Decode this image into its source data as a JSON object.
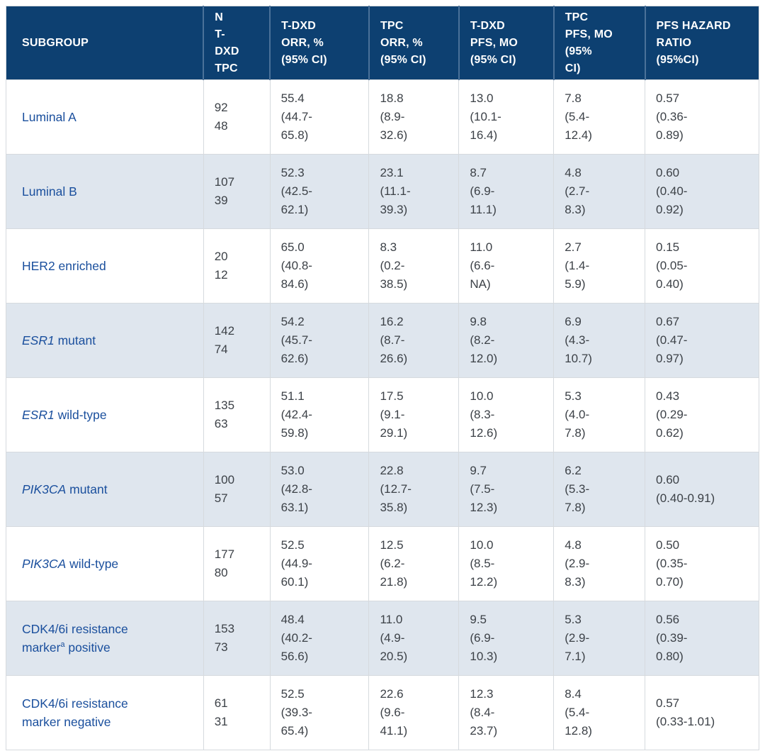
{
  "theme": {
    "header_bg": "#0d4071",
    "header_text": "#ffffff",
    "header_divider": "#4a7199",
    "row_alt_bg": "#dfe6ee",
    "row_bg": "#ffffff",
    "border": "#d6dade",
    "subgroup_text": "#1a4f9d",
    "body_text": "#3c4147"
  },
  "table": {
    "columns": [
      {
        "id": "subgroup",
        "label": "SUBGROUP"
      },
      {
        "id": "n",
        "label": "N\nT-\nDXD\nTPC"
      },
      {
        "id": "tdxd_orr",
        "label": "T-DXD\nORR, %\n(95% CI)"
      },
      {
        "id": "tpc_orr",
        "label": "TPC\nORR, %\n(95% CI)"
      },
      {
        "id": "tdxd_pfs",
        "label": "T-DXD\nPFS, MO\n(95% CI)"
      },
      {
        "id": "tpc_pfs",
        "label": "TPC\nPFS, MO\n(95%\nCI)"
      },
      {
        "id": "pfs_hr",
        "label": "PFS HAZARD\nRATIO\n(95%CI)"
      }
    ],
    "rows": [
      {
        "subgroup": [
          {
            "text": "Luminal A"
          }
        ],
        "values": [
          "92\n48",
          "55.4\n(44.7-\n65.8)",
          "18.8\n(8.9-\n32.6)",
          "13.0\n(10.1-\n16.4)",
          "7.8\n(5.4-\n12.4)",
          "0.57\n(0.36-\n0.89)"
        ]
      },
      {
        "subgroup": [
          {
            "text": "Luminal B"
          }
        ],
        "values": [
          "107\n39",
          "52.3\n(42.5-\n62.1)",
          "23.1\n(11.1-\n39.3)",
          "8.7\n(6.9-\n11.1)",
          "4.8\n(2.7-\n8.3)",
          "0.60\n(0.40-\n0.92)"
        ]
      },
      {
        "subgroup": [
          {
            "text": "HER2 enriched"
          }
        ],
        "values": [
          "20\n12",
          "65.0\n(40.8-\n84.6)",
          "8.3\n(0.2-\n38.5)",
          "11.0\n(6.6-\nNA)",
          "2.7\n(1.4-\n5.9)",
          "0.15\n(0.05-\n0.40)"
        ]
      },
      {
        "subgroup": [
          {
            "text": "ESR1",
            "italic": true
          },
          {
            "text": " mutant"
          }
        ],
        "values": [
          "142\n74",
          "54.2\n(45.7-\n62.6)",
          "16.2\n(8.7-\n26.6)",
          "9.8\n(8.2-\n12.0)",
          "6.9\n(4.3-\n10.7)",
          "0.67\n(0.47-\n0.97)"
        ]
      },
      {
        "subgroup": [
          {
            "text": "ESR1",
            "italic": true
          },
          {
            "text": " wild-type"
          }
        ],
        "values": [
          "135\n63",
          "51.1\n(42.4-\n59.8)",
          "17.5\n(9.1-\n29.1)",
          "10.0\n(8.3-\n12.6)",
          "5.3\n(4.0-\n7.8)",
          "0.43\n(0.29-\n0.62)"
        ]
      },
      {
        "subgroup": [
          {
            "text": "PIK3CA",
            "italic": true
          },
          {
            "text": " mutant"
          }
        ],
        "values": [
          "100\n57",
          "53.0\n(42.8-\n63.1)",
          "22.8\n(12.7-\n35.8)",
          "9.7\n(7.5-\n12.3)",
          "6.2\n(5.3-\n7.8)",
          "0.60\n(0.40-0.91)"
        ]
      },
      {
        "subgroup": [
          {
            "text": "PIK3CA",
            "italic": true
          },
          {
            "text": " wild-type"
          }
        ],
        "values": [
          "177\n80",
          "52.5\n(44.9-\n60.1)",
          "12.5\n(6.2-\n21.8)",
          "10.0\n(8.5-\n12.2)",
          "4.8\n(2.9-\n8.3)",
          "0.50\n(0.35-\n0.70)"
        ]
      },
      {
        "subgroup": [
          {
            "text": "CDK4/6i resistance\nmarker"
          },
          {
            "text": "a",
            "sup": true
          },
          {
            "text": " positive"
          }
        ],
        "values": [
          "153\n73",
          "48.4\n(40.2-\n56.6)",
          "11.0\n(4.9-\n20.5)",
          "9.5\n(6.9-\n10.3)",
          "5.3\n(2.9-\n7.1)",
          "0.56\n(0.39-\n0.80)"
        ]
      },
      {
        "subgroup": [
          {
            "text": "CDK4/6i resistance\nmarker negative"
          }
        ],
        "values": [
          "61\n31",
          "52.5\n(39.3-\n65.4)",
          "22.6\n(9.6-\n41.1)",
          "12.3\n(8.4-\n23.7)",
          "8.4\n(5.4-\n12.8)",
          "0.57\n(0.33-1.01)"
        ]
      }
    ]
  }
}
